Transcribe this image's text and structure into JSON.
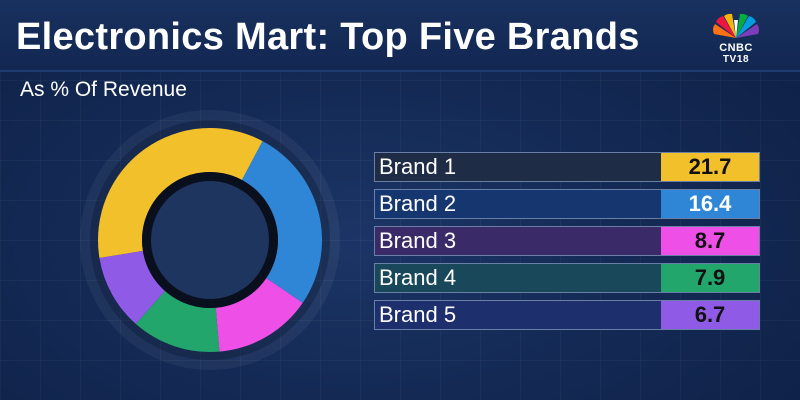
{
  "header": {
    "title": "Electronics Mart: Top Five Brands",
    "subtitle": "As % Of Revenue",
    "logo_line1": "CNBC",
    "logo_line2": "TV18"
  },
  "colors": {
    "brand1": "#f2c02b",
    "brand2": "#2f86d6",
    "brand3": "#ee4fe6",
    "brand4": "#23a66c",
    "brand5": "#8f5be6"
  },
  "chart_data": {
    "type": "pie",
    "variant": "donut",
    "title": "Electronics Mart: Top Five Brands",
    "subtitle": "As % Of Revenue",
    "categories": [
      "Brand 1",
      "Brand 2",
      "Brand 3",
      "Brand 4",
      "Brand 5"
    ],
    "values": [
      21.7,
      16.4,
      8.7,
      7.9,
      6.7
    ],
    "value_labels": [
      "21.7",
      "16.4",
      "8.7",
      "7.9",
      "6.7"
    ],
    "colors": [
      "#f2c02b",
      "#2f86d6",
      "#ee4fe6",
      "#23a66c",
      "#8f5be6"
    ],
    "row_backgrounds": [
      "#1f2c45",
      "#16366f",
      "#3a2a67",
      "#18485a",
      "#1e2f6e"
    ],
    "value_text_colors": [
      "#111111",
      "#ffffff",
      "#111111",
      "#111111",
      "#111111"
    ],
    "legend_position": "right"
  }
}
